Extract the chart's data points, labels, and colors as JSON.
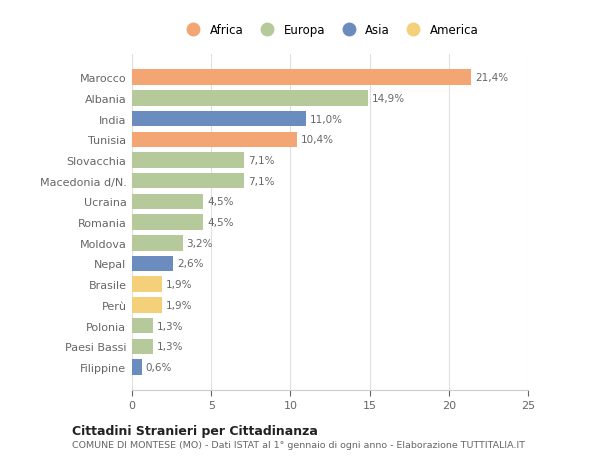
{
  "countries": [
    "Marocco",
    "Albania",
    "India",
    "Tunisia",
    "Slovacchia",
    "Macedonia d/N.",
    "Ucraina",
    "Romania",
    "Moldova",
    "Nepal",
    "Brasile",
    "Perù",
    "Polonia",
    "Paesi Bassi",
    "Filippine"
  ],
  "values": [
    21.4,
    14.9,
    11.0,
    10.4,
    7.1,
    7.1,
    4.5,
    4.5,
    3.2,
    2.6,
    1.9,
    1.9,
    1.3,
    1.3,
    0.6
  ],
  "labels": [
    "21,4%",
    "14,9%",
    "11,0%",
    "10,4%",
    "7,1%",
    "7,1%",
    "4,5%",
    "4,5%",
    "3,2%",
    "2,6%",
    "1,9%",
    "1,9%",
    "1,3%",
    "1,3%",
    "0,6%"
  ],
  "continents": [
    "Africa",
    "Europa",
    "Asia",
    "Africa",
    "Europa",
    "Europa",
    "Europa",
    "Europa",
    "Europa",
    "Asia",
    "America",
    "America",
    "Europa",
    "Europa",
    "Asia"
  ],
  "colors": {
    "Africa": "#F4A574",
    "Europa": "#B5C99A",
    "Asia": "#6B8CBE",
    "America": "#F5D07A"
  },
  "legend_order": [
    "Africa",
    "Europa",
    "Asia",
    "America"
  ],
  "legend_colors": [
    "#F4A574",
    "#B5C99A",
    "#6B8CBE",
    "#F5D07A"
  ],
  "title": "Cittadini Stranieri per Cittadinanza",
  "subtitle": "COMUNE DI MONTESE (MO) - Dati ISTAT al 1° gennaio di ogni anno - Elaborazione TUTTITALIA.IT",
  "xlim": [
    0,
    25
  ],
  "xticks": [
    0,
    5,
    10,
    15,
    20,
    25
  ],
  "bg_color": "#ffffff",
  "plot_bg_color": "#ffffff",
  "grid_color": "#e0e0e0"
}
